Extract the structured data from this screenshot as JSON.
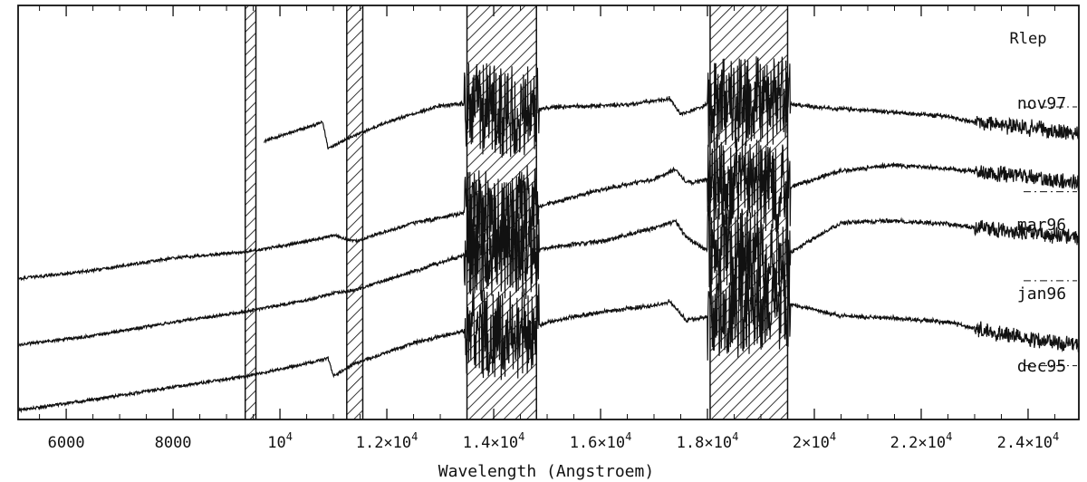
{
  "chart_data": {
    "type": "line",
    "title": "Rlep",
    "xlabel": "Wavelength (Angstroem)",
    "ylabel": "",
    "xlim": [
      5100,
      24950
    ],
    "ylim": [
      0,
      10
    ],
    "grid": false,
    "legend": "none",
    "x_ticks": [
      {
        "value": 6000,
        "label": "6000"
      },
      {
        "value": 8000,
        "label": "8000"
      },
      {
        "value": 10000,
        "label": "10",
        "exp": "4"
      },
      {
        "value": 12000,
        "label": "1.2×10",
        "exp": "4"
      },
      {
        "value": 14000,
        "label": "1.4×10",
        "exp": "4"
      },
      {
        "value": 16000,
        "label": "1.6×10",
        "exp": "4"
      },
      {
        "value": 18000,
        "label": "1.8×10",
        "exp": "4"
      },
      {
        "value": 20000,
        "label": "2×10",
        "exp": "4"
      },
      {
        "value": 22000,
        "label": "2.2×10",
        "exp": "4"
      },
      {
        "value": 24000,
        "label": "2.4×10",
        "exp": "4"
      }
    ],
    "hatched_regions": [
      [
        9350,
        9550
      ],
      [
        11250,
        11550
      ],
      [
        13500,
        14800
      ],
      [
        18050,
        19500
      ]
    ],
    "series": [
      {
        "name": "nov97",
        "baseline": 7.55,
        "points": [
          [
            9700,
            6.72
          ],
          [
            10500,
            7.05
          ],
          [
            10800,
            7.18
          ],
          [
            10900,
            6.55
          ],
          [
            11200,
            6.75
          ],
          [
            12000,
            7.18
          ],
          [
            13000,
            7.58
          ],
          [
            13500,
            7.62
          ],
          [
            14200,
            7.4
          ],
          [
            15200,
            7.55
          ],
          [
            16500,
            7.6
          ],
          [
            17300,
            7.75
          ],
          [
            17500,
            7.38
          ],
          [
            18000,
            7.6
          ],
          [
            19000,
            7.72
          ],
          [
            20000,
            7.55
          ],
          [
            21500,
            7.42
          ],
          [
            22500,
            7.32
          ],
          [
            23000,
            7.18
          ],
          [
            24000,
            7.05
          ],
          [
            24950,
            6.9
          ]
        ]
      },
      {
        "name": "mar96",
        "baseline": 5.5,
        "points": [
          [
            5100,
            3.4
          ],
          [
            6500,
            3.6
          ],
          [
            8000,
            3.9
          ],
          [
            9400,
            4.05
          ],
          [
            10500,
            4.3
          ],
          [
            11000,
            4.45
          ],
          [
            11400,
            4.3
          ],
          [
            12500,
            4.75
          ],
          [
            13500,
            5.0
          ],
          [
            14200,
            4.85
          ],
          [
            15000,
            5.2
          ],
          [
            16000,
            5.55
          ],
          [
            17000,
            5.8
          ],
          [
            17400,
            6.05
          ],
          [
            17600,
            5.72
          ],
          [
            18100,
            5.8
          ],
          [
            19500,
            5.6
          ],
          [
            20500,
            6.0
          ],
          [
            21500,
            6.15
          ],
          [
            22500,
            6.05
          ],
          [
            23500,
            5.92
          ],
          [
            24950,
            5.72
          ]
        ]
      },
      {
        "name": "jan96",
        "baseline": 3.35,
        "points": [
          [
            5100,
            1.8
          ],
          [
            6500,
            2.02
          ],
          [
            8000,
            2.35
          ],
          [
            9400,
            2.62
          ],
          [
            10500,
            2.88
          ],
          [
            11000,
            3.05
          ],
          [
            11400,
            3.12
          ],
          [
            12500,
            3.58
          ],
          [
            13500,
            4.0
          ],
          [
            14200,
            3.85
          ],
          [
            15000,
            4.15
          ],
          [
            16000,
            4.3
          ],
          [
            17000,
            4.62
          ],
          [
            17400,
            4.8
          ],
          [
            17600,
            4.4
          ],
          [
            18100,
            4.0
          ],
          [
            19500,
            4.0
          ],
          [
            20500,
            4.75
          ],
          [
            21500,
            4.8
          ],
          [
            22500,
            4.72
          ],
          [
            23500,
            4.58
          ],
          [
            24950,
            4.4
          ]
        ]
      },
      {
        "name": "dec95",
        "baseline": 1.3,
        "points": [
          [
            5100,
            0.22
          ],
          [
            6500,
            0.48
          ],
          [
            8000,
            0.78
          ],
          [
            9400,
            1.05
          ],
          [
            10500,
            1.35
          ],
          [
            10900,
            1.48
          ],
          [
            11000,
            1.05
          ],
          [
            11400,
            1.35
          ],
          [
            12500,
            1.85
          ],
          [
            13500,
            2.15
          ],
          [
            14200,
            1.95
          ],
          [
            15000,
            2.35
          ],
          [
            16000,
            2.6
          ],
          [
            17000,
            2.75
          ],
          [
            17300,
            2.85
          ],
          [
            17600,
            2.4
          ],
          [
            18100,
            2.5
          ],
          [
            19500,
            2.8
          ],
          [
            20500,
            2.5
          ],
          [
            21500,
            2.45
          ],
          [
            22500,
            2.35
          ],
          [
            23500,
            2.05
          ],
          [
            24950,
            1.8
          ]
        ]
      }
    ]
  }
}
